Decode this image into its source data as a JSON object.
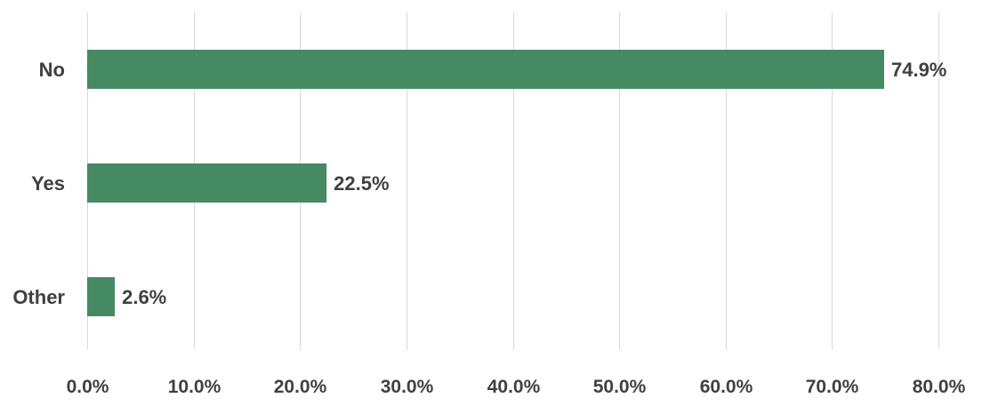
{
  "chart_data": {
    "type": "bar",
    "orientation": "horizontal",
    "categories": [
      "No",
      "Yes",
      "Other"
    ],
    "values": [
      74.9,
      22.5,
      2.6
    ],
    "data_labels": [
      "74.9%",
      "22.5%",
      "2.6%"
    ],
    "xlim": [
      0,
      80
    ],
    "x_ticks": [
      0,
      10,
      20,
      30,
      40,
      50,
      60,
      70,
      80
    ],
    "x_tick_labels": [
      "0.0%",
      "10.0%",
      "20.0%",
      "30.0%",
      "40.0%",
      "50.0%",
      "60.0%",
      "70.0%",
      "80.0%"
    ],
    "grid": "vertical",
    "bar_color": "#468a64",
    "text_color": "#404040",
    "grid_color": "#d9d9d9"
  }
}
